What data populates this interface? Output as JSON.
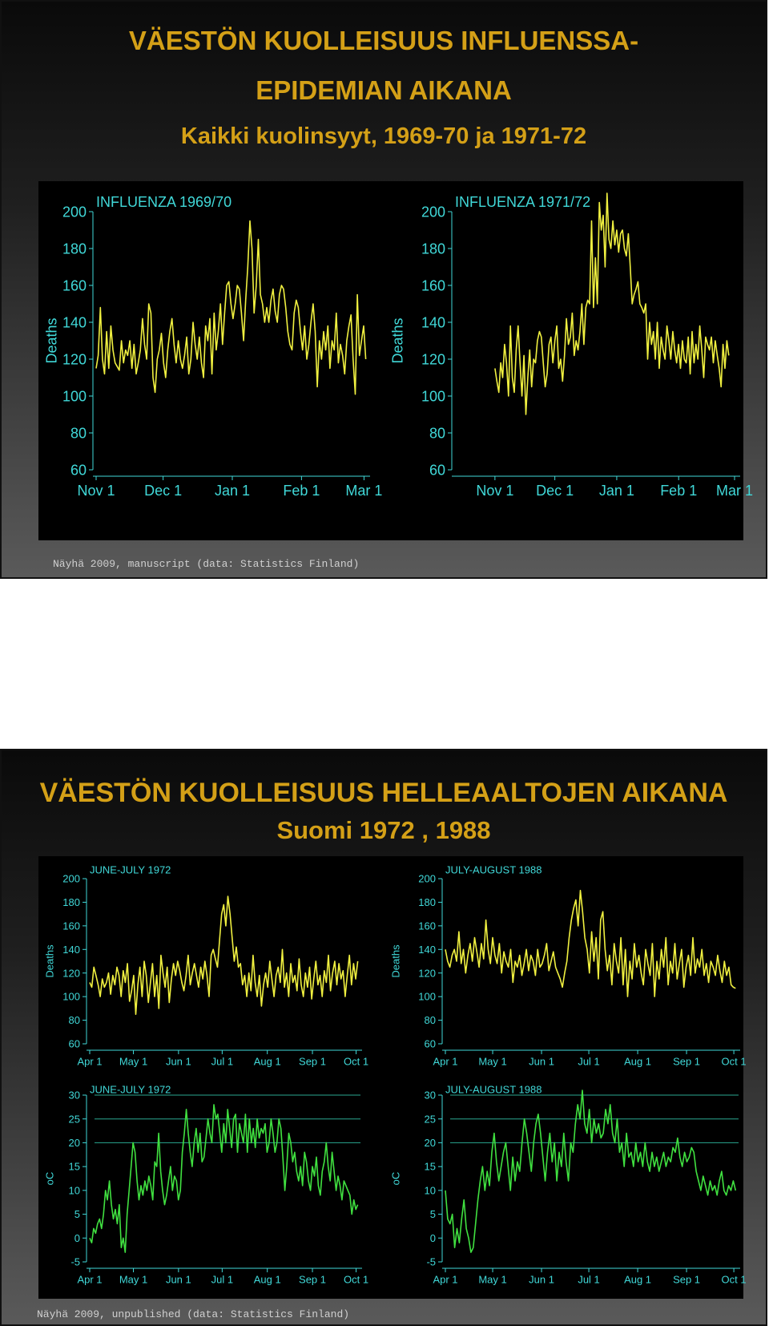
{
  "slide1": {
    "title_line1": "VÄESTÖN KUOLLEISUUS INFLUENSSA-",
    "title_line2": "EPIDEMIAN AIKANA",
    "subtitle": "Kaikki kuolinsyyt, 1969-70 ja 1971-72",
    "caption": "Näyhä 2009, manuscript (data: Statistics Finland)"
  },
  "slide2": {
    "title": "VÄESTÖN KUOLLEISUUS HELLEAALTOJEN AIKANA",
    "subtitle": "Suomi 1972 , 1988",
    "caption": "Näyhä 2009, unpublished (data: Statistics Finland)"
  },
  "colors": {
    "title": "#d4a017",
    "axis": "#40d8d8",
    "deaths_line": "#f0f040",
    "temp_line": "#40e040",
    "panel_bg": "#000000"
  },
  "chart_data": [
    {
      "id": "c1",
      "type": "line",
      "title": "INFLUENZA 1969/70",
      "ylabel": "Deaths",
      "xlabel": "",
      "ylim": [
        60,
        200
      ],
      "yticks": [
        60,
        80,
        100,
        120,
        140,
        160,
        180,
        200
      ],
      "xlim": [
        0,
        122
      ],
      "xtick_pos": [
        0,
        30,
        61,
        92,
        120
      ],
      "xtick_labels": [
        "Nov 1",
        "Dec 1",
        "Jan 1",
        "Feb 1",
        "Mar 1"
      ],
      "series": [
        {
          "color": "#f0f040",
          "values": [
            115,
            122,
            148,
            120,
            112,
            135,
            115,
            138,
            125,
            118,
            116,
            114,
            130,
            118,
            125,
            122,
            130,
            115,
            128,
            112,
            118,
            125,
            142,
            128,
            120,
            150,
            145,
            110,
            102,
            120,
            125,
            134,
            118,
            110,
            125,
            135,
            142,
            128,
            118,
            130,
            120,
            115,
            122,
            132,
            112,
            120,
            140,
            128,
            120,
            132,
            118,
            110,
            138,
            130,
            142,
            112,
            145,
            125,
            135,
            150,
            128,
            145,
            160,
            162,
            150,
            142,
            150,
            160,
            158,
            145,
            130,
            152,
            170,
            195,
            180,
            145,
            160,
            185,
            155,
            150,
            140,
            148,
            140,
            152,
            158,
            146,
            140,
            155,
            160,
            158,
            148,
            135,
            128,
            125,
            145,
            152,
            148,
            135,
            125,
            138,
            120,
            128,
            140,
            150,
            135,
            105,
            130,
            120,
            135,
            125,
            138,
            115,
            130,
            125,
            145,
            118,
            128,
            122,
            112,
            130,
            138,
            144,
            120,
            101,
            155,
            122,
            130,
            138,
            120
          ]
        }
      ],
      "grid": false
    },
    {
      "id": "c2",
      "type": "line",
      "title": "INFLUENZA 1971/72",
      "ylabel": "Deaths",
      "xlabel": "",
      "ylim": [
        60,
        200
      ],
      "yticks": [
        60,
        80,
        100,
        120,
        140,
        160,
        180,
        200
      ],
      "xlim": [
        -20,
        122
      ],
      "xtick_pos": [
        0,
        30,
        61,
        92,
        120
      ],
      "xtick_labels": [
        "Nov 1",
        "Dec 1",
        "Jan 1",
        "Feb 1",
        "Mar 1"
      ],
      "series": [
        {
          "color": "#f0f040",
          "values": [
            115,
            108,
            102,
            118,
            110,
            128,
            118,
            100,
            138,
            110,
            102,
            125,
            138,
            118,
            100,
            122,
            90,
            110,
            125,
            105,
            120,
            118,
            130,
            135,
            132,
            118,
            105,
            112,
            128,
            132,
            118,
            130,
            138,
            115,
            120,
            108,
            122,
            142,
            128,
            132,
            145,
            122,
            130,
            125,
            135,
            150,
            128,
            148,
            152,
            150,
            195,
            148,
            175,
            150,
            205,
            190,
            198,
            170,
            210,
            185,
            180,
            195,
            182,
            190,
            178,
            188,
            190,
            180,
            176,
            188,
            170,
            150,
            155,
            158,
            162,
            150,
            148,
            145,
            150,
            120,
            140,
            128,
            135,
            120,
            140,
            115,
            132,
            125,
            120,
            138,
            130,
            120,
            135,
            125,
            118,
            128,
            115,
            130,
            120,
            118,
            132,
            112,
            135,
            118,
            128,
            120,
            138,
            125,
            110,
            132,
            128,
            125,
            132,
            118,
            130,
            122,
            115,
            105,
            128,
            115,
            130,
            122
          ]
        }
      ],
      "grid": false
    },
    {
      "id": "c3",
      "type": "line",
      "title": "JUNE-JULY 1972",
      "ylabel": "Deaths",
      "xlabel": "",
      "ylim": [
        60,
        200
      ],
      "yticks": [
        60,
        80,
        100,
        120,
        140,
        160,
        180,
        200
      ],
      "xlim": [
        0,
        186
      ],
      "xtick_pos": [
        0,
        30,
        61,
        91,
        122,
        153,
        183
      ],
      "xtick_labels": [
        "Apr 1",
        "May 1",
        "Jun 1",
        "Jul 1",
        "Aug 1",
        "Sep 1",
        "Oct 1"
      ],
      "series": [
        {
          "color": "#f0f040",
          "values": [
            112,
            108,
            125,
            118,
            110,
            100,
            115,
            108,
            112,
            120,
            102,
            118,
            110,
            125,
            118,
            100,
            122,
            112,
            128,
            96,
            105,
            118,
            85,
            110,
            125,
            100,
            130,
            118,
            95,
            112,
            128,
            100,
            118,
            90,
            135,
            120,
            108,
            125,
            95,
            115,
            128,
            118,
            130,
            122,
            112,
            105,
            118,
            135,
            110,
            120,
            128,
            118,
            108,
            125,
            115,
            130,
            118,
            100,
            135,
            140,
            132,
            125,
            148,
            170,
            178,
            160,
            185,
            170,
            150,
            130,
            142,
            125,
            128,
            110,
            118,
            100,
            120,
            105,
            135,
            112,
            100,
            118,
            92,
            110,
            120,
            108,
            130,
            115,
            100,
            118,
            125,
            112,
            140,
            108,
            120,
            100,
            128,
            112,
            118,
            105,
            132,
            110,
            100,
            120,
            108,
            125,
            98,
            115,
            130,
            110,
            118,
            100,
            122,
            112,
            135,
            105,
            120,
            130,
            110,
            128,
            115,
            122,
            100,
            118,
            135,
            110,
            128,
            115,
            130
          ]
        }
      ],
      "grid": false
    },
    {
      "id": "c4",
      "type": "line",
      "title": "JULY-AUGUST 1988",
      "ylabel": "Deaths",
      "xlabel": "",
      "ylim": [
        60,
        200
      ],
      "yticks": [
        60,
        80,
        100,
        120,
        140,
        160,
        180,
        200
      ],
      "xlim": [
        0,
        186
      ],
      "xtick_pos": [
        0,
        30,
        61,
        91,
        122,
        153,
        183
      ],
      "xtick_labels": [
        "Apr 1",
        "May 1",
        "Jun 1",
        "Jul 1",
        "Aug 1",
        "Sep 1",
        "Oct 1"
      ],
      "series": [
        {
          "color": "#f0f040",
          "values": [
            140,
            130,
            125,
            135,
            140,
            130,
            155,
            128,
            140,
            120,
            135,
            145,
            130,
            150,
            138,
            125,
            145,
            132,
            165,
            140,
            128,
            150,
            135,
            128,
            145,
            120,
            138,
            130,
            125,
            140,
            112,
            130,
            125,
            135,
            118,
            128,
            140,
            122,
            135,
            130,
            118,
            140,
            125,
            128,
            135,
            145,
            122,
            130,
            138,
            125,
            120,
            115,
            108,
            120,
            130,
            150,
            165,
            175,
            182,
            160,
            190,
            172,
            150,
            140,
            120,
            155,
            130,
            150,
            115,
            165,
            172,
            140,
            122,
            135,
            110,
            145,
            130,
            120,
            150,
            110,
            140,
            100,
            130,
            115,
            145,
            125,
            135,
            120,
            110,
            140,
            128,
            118,
            145,
            100,
            130,
            115,
            140,
            125,
            150,
            110,
            130,
            120,
            145,
            115,
            128,
            140,
            108,
            125,
            135,
            118,
            150,
            120,
            132,
            125,
            140,
            118,
            128,
            112,
            130,
            125,
            118,
            135,
            122,
            112,
            130,
            118,
            125,
            110,
            108,
            107
          ]
        }
      ],
      "grid": false
    },
    {
      "id": "c5",
      "type": "line",
      "title": "JUNE-JULY 1972",
      "ylabel": "oC",
      "xlabel": "",
      "ylim": [
        -5,
        30
      ],
      "yticks": [
        -5,
        0,
        5,
        10,
        15,
        20,
        25,
        30
      ],
      "gridlines": [
        20,
        25,
        30
      ],
      "xlim": [
        0,
        186
      ],
      "xtick_pos": [
        0,
        30,
        61,
        91,
        122,
        153,
        183
      ],
      "xtick_labels": [
        "Apr 1",
        "May 1",
        "Jun 1",
        "Jul 1",
        "Aug 1",
        "Sep 1",
        "Oct 1"
      ],
      "series": [
        {
          "color": "#40e040",
          "values": [
            0,
            -1,
            2,
            1,
            3,
            4,
            2,
            5,
            10,
            8,
            12,
            7,
            4,
            6,
            3,
            7,
            -2,
            0,
            -3,
            5,
            10,
            15,
            20,
            18,
            12,
            8,
            11,
            9,
            12,
            10,
            13,
            11,
            8,
            16,
            15,
            22,
            14,
            10,
            7,
            9,
            12,
            15,
            10,
            13,
            12,
            8,
            10,
            18,
            22,
            27,
            22,
            18,
            15,
            20,
            23,
            18,
            22,
            16,
            17,
            21,
            25,
            22,
            20,
            28,
            25,
            26,
            22,
            18,
            24,
            20,
            27,
            23,
            19,
            25,
            26,
            18,
            24,
            22,
            20,
            26,
            18,
            25,
            20,
            23,
            19,
            25,
            21,
            23,
            22,
            24,
            18,
            20,
            25,
            22,
            18,
            20,
            25,
            23,
            17,
            10,
            15,
            22,
            20,
            16,
            18,
            14,
            12,
            15,
            11,
            18,
            16,
            12,
            10,
            15,
            13,
            17,
            11,
            9,
            14,
            16,
            20,
            15,
            12,
            18,
            14,
            10,
            13,
            11,
            8,
            12,
            11,
            10,
            9,
            5,
            8,
            6,
            7
          ]
        }
      ],
      "grid": true
    },
    {
      "id": "c6",
      "type": "line",
      "title": "JULY-AUGUST 1988",
      "ylabel": "oC",
      "xlabel": "",
      "ylim": [
        -5,
        30
      ],
      "yticks": [
        -5,
        0,
        5,
        10,
        15,
        20,
        25,
        30
      ],
      "gridlines": [
        20,
        25,
        30
      ],
      "xlim": [
        0,
        186
      ],
      "xtick_pos": [
        0,
        30,
        61,
        91,
        122,
        153,
        183
      ],
      "xtick_labels": [
        "Apr 1",
        "May 1",
        "Jun 1",
        "Jul 1",
        "Aug 1",
        "Sep 1",
        "Oct 1"
      ],
      "series": [
        {
          "color": "#40e040",
          "values": [
            10,
            4,
            3,
            5,
            -2,
            2,
            -1,
            4,
            8,
            2,
            0,
            -3,
            -2,
            3,
            8,
            12,
            15,
            10,
            14,
            11,
            18,
            22,
            16,
            12,
            15,
            18,
            20,
            15,
            10,
            17,
            12,
            16,
            14,
            20,
            25,
            22,
            18,
            14,
            20,
            24,
            26,
            22,
            17,
            12,
            18,
            22,
            16,
            20,
            12,
            18,
            15,
            22,
            16,
            12,
            20,
            18,
            24,
            28,
            25,
            31,
            24,
            22,
            27,
            20,
            25,
            22,
            24,
            21,
            22,
            27,
            24,
            28,
            22,
            20,
            25,
            18,
            20,
            15,
            22,
            17,
            18,
            15,
            20,
            16,
            18,
            15,
            20,
            16,
            14,
            18,
            15,
            17,
            14,
            16,
            18,
            15,
            17,
            16,
            19,
            18,
            21,
            17,
            15,
            18,
            16,
            17,
            19,
            18,
            14,
            12,
            10,
            13,
            11,
            9,
            12,
            10,
            11,
            9,
            12,
            14,
            10,
            9,
            11,
            10,
            12,
            10
          ]
        }
      ],
      "grid": true
    }
  ]
}
